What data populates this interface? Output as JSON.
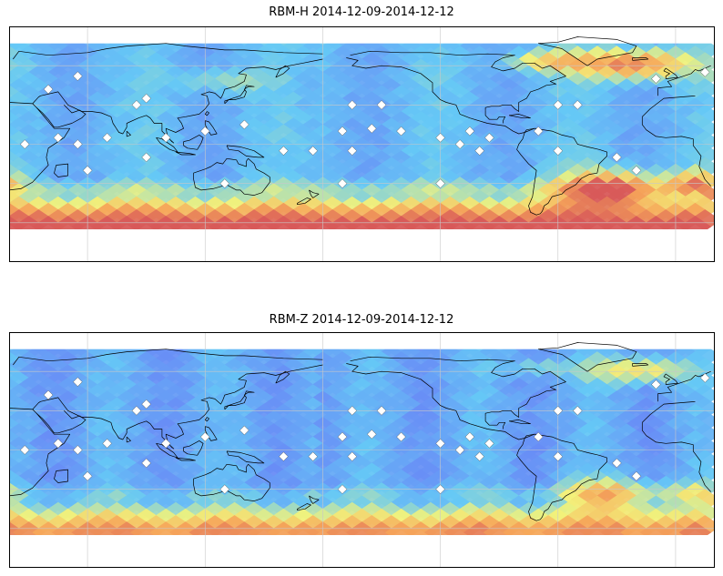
{
  "panels": [
    {
      "title": "RBM-H 2014-12-09-2014-12-12",
      "field": "h"
    },
    {
      "title": "RBM-Z 2014-12-09-2014-12-12",
      "field": "z"
    }
  ],
  "colors": {
    "low": "#6a6af5",
    "mid_low": "#65c8f5",
    "mid": "#f2f27a",
    "mid_high": "#f5a55a",
    "high": "#d85a5a",
    "coast": "#000000",
    "grid": "#c8c8c8",
    "station": "#ffffff"
  }
}
